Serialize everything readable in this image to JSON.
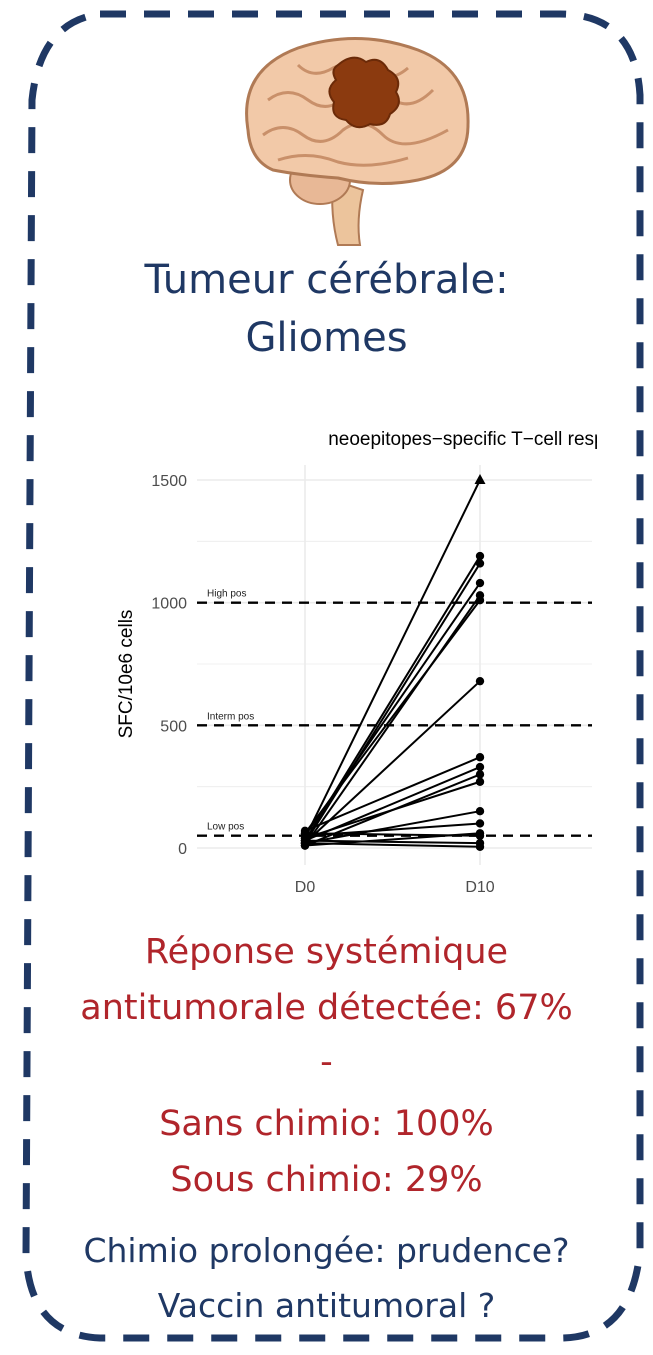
{
  "heading": {
    "line1": "Tumeur cérébrale:",
    "line2": "Gliomes"
  },
  "results": {
    "line1": "Réponse systémique",
    "line2": "antitumorale détectée: 67%",
    "separator": "-",
    "without_chemo": "Sans chimio: 100%",
    "with_chemo": "Sous chimio: 29%"
  },
  "conclusion": {
    "line1": "Chimio prolongée: prudence?",
    "line2": "Vaccin antitumoral ?"
  },
  "colors": {
    "title_blue": "#1f3864",
    "result_red": "#b0252b",
    "frame": "#1f3864",
    "tumor": "#8b3a0f",
    "brain": "#f2c9a8"
  },
  "chart_data": {
    "type": "line",
    "title": "neoepitopes−specific T−cell response",
    "xlabel": "",
    "ylabel": "SFC/10e6 cells",
    "categories": [
      "D0",
      "D10"
    ],
    "y_ticks": [
      0,
      500,
      1000,
      1500
    ],
    "ylim": [
      -40,
      1560
    ],
    "grid": true,
    "thresholds": [
      {
        "label": "High pos",
        "value": 1000
      },
      {
        "label": "Interm pos",
        "value": 500
      },
      {
        "label": "Low pos",
        "value": 50
      }
    ],
    "series": [
      {
        "values": [
          40,
          1500
        ],
        "marker": "triangle"
      },
      {
        "values": [
          30,
          1190
        ]
      },
      {
        "values": [
          20,
          1160
        ]
      },
      {
        "values": [
          50,
          1080
        ]
      },
      {
        "values": [
          10,
          1030
        ]
      },
      {
        "values": [
          60,
          1010
        ]
      },
      {
        "values": [
          20,
          680
        ]
      },
      {
        "values": [
          70,
          370
        ]
      },
      {
        "values": [
          30,
          330
        ]
      },
      {
        "values": [
          10,
          300
        ]
      },
      {
        "values": [
          40,
          270
        ]
      },
      {
        "values": [
          20,
          150
        ]
      },
      {
        "values": [
          50,
          100
        ]
      },
      {
        "values": [
          10,
          60
        ]
      },
      {
        "values": [
          60,
          50
        ]
      },
      {
        "values": [
          30,
          20
        ]
      },
      {
        "values": [
          20,
          5
        ]
      }
    ]
  }
}
